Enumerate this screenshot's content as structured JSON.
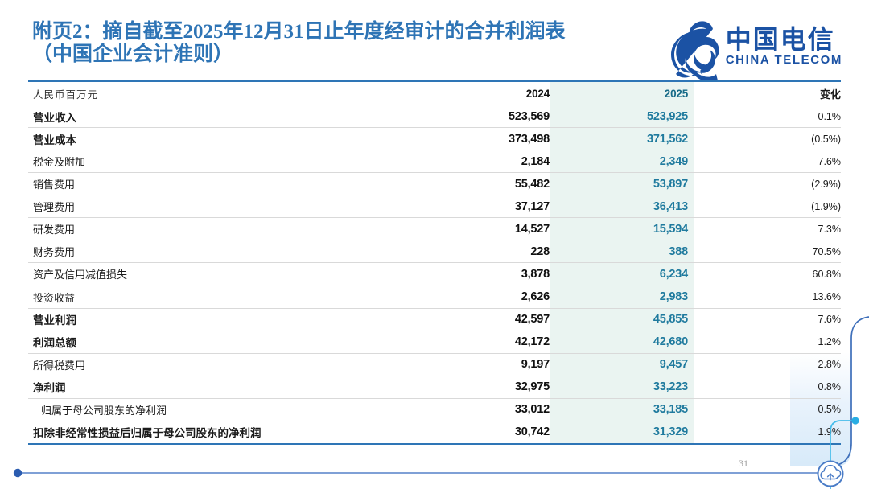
{
  "page": {
    "title_line1": "附页2：摘自截至2025年12月31日止年度经审计的合并利润表",
    "title_line2": "（中国企业会计准则）",
    "page_number": "31"
  },
  "logo": {
    "icon": "china-telecom-swoosh-icon",
    "name_cn": "中国电信",
    "name_en": "CHINA TELECOM",
    "brand_color": "#1B52A4"
  },
  "table": {
    "unit_label": "人民币百万元",
    "col_2024": "2024",
    "col_2025": "2025",
    "col_change": "变化",
    "highlight_bg": "#EAF4F1",
    "highlight_text": "#1F7A9E",
    "rows": [
      {
        "label": "营业收入",
        "bold": true,
        "indent": false,
        "v2024": "523,569",
        "v2025": "523,925",
        "change": "0.1%"
      },
      {
        "label": "营业成本",
        "bold": true,
        "indent": false,
        "v2024": "373,498",
        "v2025": "371,562",
        "change": "(0.5%)"
      },
      {
        "label": "税金及附加",
        "bold": false,
        "indent": false,
        "v2024": "2,184",
        "v2025": "2,349",
        "change": "7.6%"
      },
      {
        "label": "销售费用",
        "bold": false,
        "indent": false,
        "v2024": "55,482",
        "v2025": "53,897",
        "change": "(2.9%)"
      },
      {
        "label": "管理费用",
        "bold": false,
        "indent": false,
        "v2024": "37,127",
        "v2025": "36,413",
        "change": "(1.9%)"
      },
      {
        "label": "研发费用",
        "bold": false,
        "indent": false,
        "v2024": "14,527",
        "v2025": "15,594",
        "change": "7.3%"
      },
      {
        "label": "财务费用",
        "bold": false,
        "indent": false,
        "v2024": "228",
        "v2025": "388",
        "change": "70.5%"
      },
      {
        "label": "资产及信用减值损失",
        "bold": false,
        "indent": false,
        "v2024": "3,878",
        "v2025": "6,234",
        "change": "60.8%"
      },
      {
        "label": "投资收益",
        "bold": false,
        "indent": false,
        "v2024": "2,626",
        "v2025": "2,983",
        "change": "13.6%"
      },
      {
        "label": "营业利润",
        "bold": true,
        "indent": false,
        "v2024": "42,597",
        "v2025": "45,855",
        "change": "7.6%"
      },
      {
        "label": "利润总额",
        "bold": true,
        "indent": false,
        "v2024": "42,172",
        "v2025": "42,680",
        "change": "1.2%"
      },
      {
        "label": "所得税费用",
        "bold": false,
        "indent": false,
        "v2024": "9,197",
        "v2025": "9,457",
        "change": "2.8%"
      },
      {
        "label": "净利润",
        "bold": true,
        "indent": false,
        "v2024": "32,975",
        "v2025": "33,223",
        "change": "0.8%"
      },
      {
        "label": "归属于母公司股东的净利润",
        "bold": false,
        "indent": true,
        "v2024": "33,012",
        "v2025": "33,185",
        "change": "0.5%"
      },
      {
        "label": "扣除非经常性损益后归属于母公司股东的净利润",
        "bold": true,
        "indent": false,
        "v2024": "30,742",
        "v2025": "31,329",
        "change": "1.9%"
      }
    ]
  },
  "decor": {
    "cloud_icon": "cloud-upload-icon",
    "title_blue": "#2E74B5",
    "border_blue": "#2E75B6",
    "frame_blue": "#3E6FBA",
    "accent_cyan": "#29ADE3",
    "row_line_gray": "#D9D9D9"
  }
}
